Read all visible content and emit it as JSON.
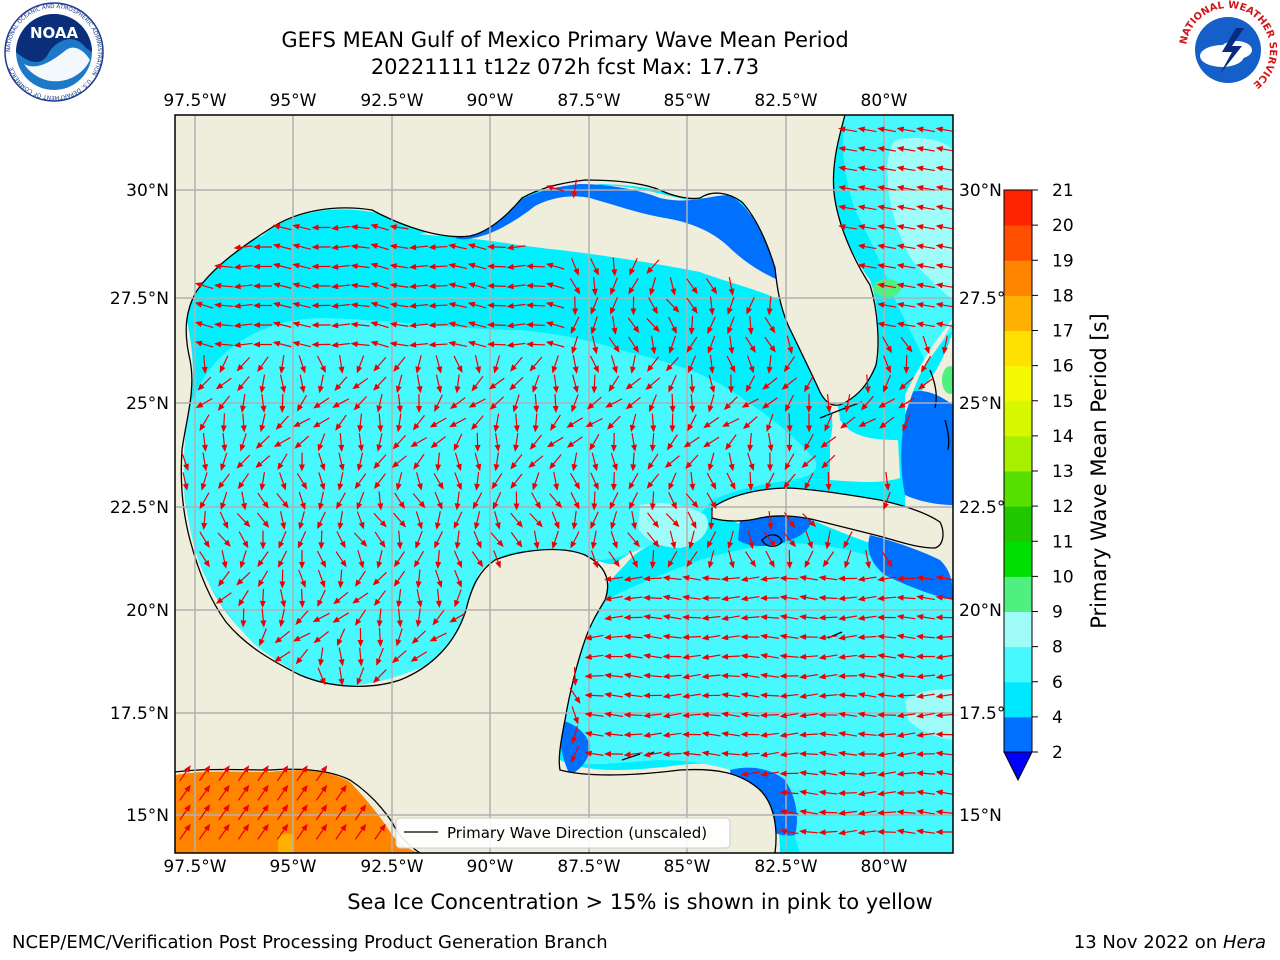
{
  "title": {
    "line1": "GEFS MEAN Gulf of Mexico Primary Wave Mean Period",
    "line2": "20221111 t12z 072h fcst   Max: 17.73"
  },
  "logos": {
    "noaa_text": "NOAA",
    "noaa_ring_text": "NATIONAL OCEANIC AND ATMOSPHERIC ADMINISTRATION · U.S. DEPARTMENT OF COMMERCE",
    "nws_ring_text": "NATIONAL WEATHER SERVICE"
  },
  "map": {
    "lon_ticks": [
      "97.5°W",
      "95°W",
      "92.5°W",
      "90°W",
      "87.5°W",
      "85°W",
      "82.5°W",
      "80°W"
    ],
    "lat_ticks": [
      "30°N",
      "27.5°N",
      "25°N",
      "22.5°N",
      "20°N",
      "17.5°N",
      "15°N"
    ],
    "legend_label": "Primary Wave Direction (unscaled)",
    "land_color": "#efeddc",
    "arrow_color": "#ee0000",
    "grid_color": "#b0b0b0"
  },
  "colorbar": {
    "label": "Primary Wave Mean Period [s]",
    "levels": [
      "2",
      "4",
      "6",
      "8",
      "9",
      "10",
      "11",
      "12",
      "13",
      "14",
      "15",
      "16",
      "17",
      "18",
      "19",
      "20",
      "21"
    ],
    "colors": [
      "#0070ff",
      "#00e8ff",
      "#48f8ff",
      "#a0fcf8",
      "#50f080",
      "#00e000",
      "#20c800",
      "#58e000",
      "#a8f000",
      "#d8f800",
      "#f4f800",
      "#ffe000",
      "#ffb000",
      "#ff8400",
      "#ff5000",
      "#ff2400"
    ],
    "under_color": "#0000ff"
  },
  "captions": {
    "sea_ice": "Sea Ice Concentration > 15% is shown in pink to yellow",
    "footer_left": "NCEP/EMC/Verification Post Processing Product Generation Branch",
    "footer_date": "13 Nov 2022 on ",
    "footer_host": "Hera"
  }
}
